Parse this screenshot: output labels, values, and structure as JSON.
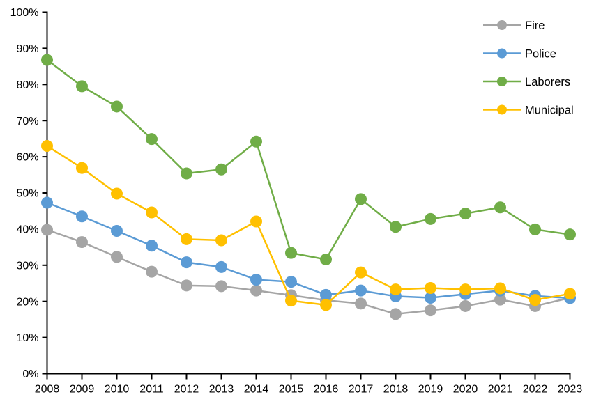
{
  "chart_data": {
    "type": "line",
    "title": "",
    "xlabel": "",
    "ylabel": "",
    "categories": [
      "2008",
      "2009",
      "2010",
      "2011",
      "2012",
      "2013",
      "2014",
      "2015",
      "2016",
      "2017",
      "2018",
      "2019",
      "2020",
      "2021",
      "2022",
      "2023"
    ],
    "series": [
      {
        "name": "Fire",
        "color": "#A5A5A5",
        "values": [
          39.8,
          36.4,
          32.3,
          28.2,
          24.4,
          24.2,
          23.0,
          21.7,
          20.3,
          19.4,
          16.5,
          17.5,
          18.7,
          20.5,
          18.7,
          21.0
        ]
      },
      {
        "name": "Police",
        "color": "#5B9BD5",
        "values": [
          47.3,
          43.5,
          39.5,
          35.4,
          30.8,
          29.5,
          26.0,
          25.4,
          21.8,
          23.0,
          21.4,
          21.0,
          22.0,
          23.0,
          21.5,
          20.9
        ]
      },
      {
        "name": "Laborers",
        "color": "#70AD47",
        "values": [
          86.8,
          79.5,
          73.9,
          64.9,
          55.4,
          56.5,
          64.2,
          33.4,
          31.6,
          48.3,
          40.6,
          42.8,
          44.3,
          46.0,
          39.9,
          38.5
        ]
      },
      {
        "name": "Municipal",
        "color": "#FFC000",
        "values": [
          63.0,
          56.9,
          49.8,
          44.6,
          37.2,
          36.9,
          42.1,
          20.2,
          19.0,
          28.0,
          23.3,
          23.7,
          23.3,
          23.6,
          20.4,
          22.1
        ]
      }
    ],
    "ylim": [
      0,
      100
    ],
    "ytick_step": 10,
    "ytick_labels": [
      "0%",
      "10%",
      "20%",
      "30%",
      "40%",
      "50%",
      "60%",
      "70%",
      "80%",
      "90%",
      "100%"
    ],
    "grid": false,
    "legend_position": "top-right",
    "axis_color": "#000000"
  }
}
